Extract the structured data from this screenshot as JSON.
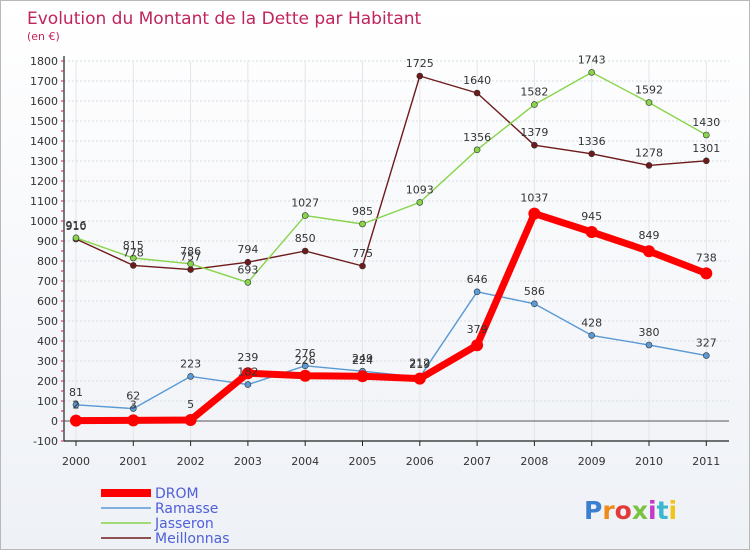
{
  "title": "Evolution du Montant de la Dette par Habitant",
  "unit_label": "(en €)",
  "brand": "Proxiti",
  "chart_data": {
    "type": "line",
    "title": "Evolution du Montant de la Dette par Habitant",
    "ylabel": "(en €)",
    "xlabel": "",
    "x": [
      "2000",
      "2001",
      "2002",
      "2003",
      "2004",
      "2005",
      "2006",
      "2007",
      "2008",
      "2009",
      "2010",
      "2011"
    ],
    "ylim": [
      -100,
      1800
    ],
    "yticks": [
      "-100",
      "0",
      "100",
      "200",
      "300",
      "400",
      "500",
      "600",
      "700",
      "800",
      "900",
      "1000",
      "1100",
      "1200",
      "1300",
      "1400",
      "1500",
      "1600",
      "1700",
      "1800"
    ],
    "grid": true,
    "legend_position": "bottom-left",
    "series": [
      {
        "name": "Meillonnas",
        "color": "#6e1a1a",
        "values": [
          910,
          778,
          757,
          794,
          850,
          775,
          1725,
          1640,
          1379,
          1336,
          1278,
          1301
        ],
        "labels": [
          "910",
          "778",
          "757",
          "794",
          "850",
          "775",
          "1725",
          "1640",
          "1379",
          "1336",
          "1278",
          "1301"
        ]
      },
      {
        "name": "Jasseron",
        "color": "#88d44a",
        "values": [
          916,
          815,
          786,
          693,
          1027,
          985,
          1093,
          1356,
          1582,
          1743,
          1592,
          1430
        ],
        "labels": [
          "916",
          "815",
          "786",
          "693",
          "1027",
          "985",
          "1093",
          "1356",
          "1582",
          "1743",
          "1592",
          "1430"
        ]
      },
      {
        "name": "Ramasse",
        "color": "#5a9ad5",
        "values": [
          81,
          62,
          223,
          182,
          276,
          249,
          219,
          646,
          586,
          428,
          380,
          327
        ],
        "labels": [
          "81",
          "62",
          "223",
          "182",
          "276",
          "249",
          "219",
          "646",
          "586",
          "428",
          "380",
          "327"
        ]
      },
      {
        "name": "DROM",
        "color": "#ff0000",
        "values": [
          2,
          3,
          5,
          239,
          226,
          224,
          212,
          379,
          1037,
          945,
          849,
          738
        ],
        "labels": [
          "2",
          "3",
          "5",
          "239",
          "226",
          "224",
          "212",
          "379",
          "1037",
          "945",
          "849",
          "738"
        ]
      }
    ],
    "legend": [
      "DROM",
      "Ramasse",
      "Jasseron",
      "Meillonnas"
    ]
  }
}
